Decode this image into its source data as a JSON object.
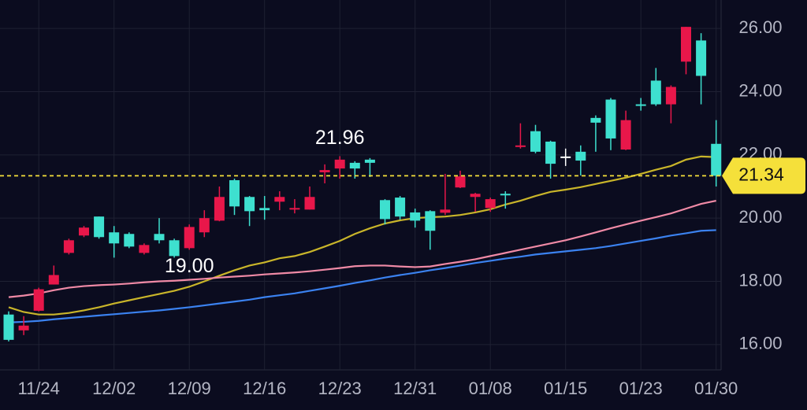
{
  "chart_data": {
    "type": "candlestick",
    "categories": [
      null,
      null,
      "11/24",
      null,
      null,
      null,
      null,
      "12/02",
      null,
      null,
      null,
      null,
      "12/09",
      null,
      null,
      null,
      null,
      "12/16",
      null,
      null,
      null,
      null,
      "12/23",
      null,
      null,
      null,
      null,
      "12/31",
      null,
      null,
      null,
      null,
      "01/08",
      null,
      null,
      null,
      null,
      "01/15",
      null,
      null,
      null,
      null,
      "01/23",
      null,
      null,
      null,
      null,
      "01/30"
    ],
    "open": [
      16.95,
      16.45,
      17.07,
      17.9,
      18.9,
      19.45,
      20.05,
      19.55,
      19.5,
      18.9,
      19.5,
      19.3,
      19.05,
      19.55,
      19.92,
      21.2,
      20.67,
      20.32,
      20.52,
      20.27,
      20.27,
      21.45,
      21.57,
      21.75,
      21.85,
      20.57,
      20.65,
      20.18,
      20.22,
      20.17,
      20.97,
      20.67,
      20.32,
      20.77,
      22.25,
      22.75,
      22.42,
      21.95,
      22.1,
      23.17,
      23.75,
      22.17,
      23.6,
      24.35,
      23.6,
      24.95,
      25.62,
      22.35
    ],
    "high": [
      17.05,
      16.9,
      17.8,
      18.5,
      19.35,
      19.75,
      20.05,
      19.75,
      19.55,
      19.2,
      20.0,
      19.35,
      19.8,
      20.25,
      21.0,
      21.25,
      20.7,
      20.7,
      20.85,
      20.6,
      21.0,
      21.7,
      21.96,
      21.8,
      21.9,
      20.6,
      20.7,
      20.3,
      20.25,
      21.4,
      21.5,
      20.8,
      20.65,
      20.85,
      23.0,
      22.95,
      22.45,
      22.2,
      22.3,
      23.25,
      23.8,
      23.4,
      23.8,
      24.75,
      24.2,
      26.05,
      25.85,
      23.1
    ],
    "low": [
      16.1,
      16.3,
      17.05,
      17.9,
      18.85,
      19.4,
      19.35,
      18.75,
      19.05,
      18.85,
      19.2,
      18.75,
      19.0,
      19.4,
      19.9,
      20.1,
      19.75,
      19.95,
      20.25,
      20.15,
      20.27,
      21.1,
      21.25,
      21.25,
      21.3,
      19.8,
      19.95,
      19.7,
      19.0,
      20.1,
      20.95,
      20.2,
      20.2,
      20.3,
      22.2,
      22.05,
      21.25,
      21.65,
      21.35,
      22.1,
      22.15,
      22.15,
      23.4,
      23.55,
      23.0,
      24.55,
      23.6,
      21.0
    ],
    "close": [
      16.15,
      16.6,
      17.75,
      18.2,
      19.3,
      19.7,
      19.4,
      19.2,
      19.1,
      19.15,
      19.3,
      18.8,
      19.72,
      20.0,
      20.67,
      20.37,
      20.22,
      20.25,
      20.67,
      20.32,
      20.67,
      21.52,
      21.85,
      21.57,
      21.75,
      19.97,
      20.05,
      19.92,
      19.6,
      20.27,
      21.32,
      20.77,
      20.6,
      20.72,
      22.3,
      22.1,
      21.72,
      21.95,
      21.82,
      23.02,
      22.52,
      23.1,
      23.55,
      23.6,
      24.15,
      26.05,
      24.5,
      21.34
    ],
    "up_color": "#e8174a",
    "down_color": "#3ee0cf",
    "flat_color": "#ffffff",
    "lines": [
      {
        "color": "#c9b52a",
        "values": [
          17.18,
          17.03,
          16.95,
          16.95,
          17.0,
          17.08,
          17.18,
          17.3,
          17.4,
          17.5,
          17.6,
          17.7,
          17.83,
          18.0,
          18.18,
          18.35,
          18.5,
          18.6,
          18.73,
          18.8,
          18.93,
          19.1,
          19.28,
          19.5,
          19.68,
          19.83,
          19.93,
          20.0,
          20.03,
          20.05,
          20.1,
          20.18,
          20.28,
          20.43,
          20.55,
          20.7,
          20.83,
          20.9,
          20.98,
          21.08,
          21.18,
          21.28,
          21.4,
          21.53,
          21.65,
          21.85,
          21.95,
          21.93
        ]
      },
      {
        "color": "#f08aa6",
        "values": [
          17.5,
          17.55,
          17.62,
          17.72,
          17.8,
          17.85,
          17.88,
          17.9,
          17.93,
          17.97,
          18.0,
          18.02,
          18.05,
          18.08,
          18.12,
          18.15,
          18.18,
          18.22,
          18.25,
          18.28,
          18.32,
          18.37,
          18.42,
          18.48,
          18.5,
          18.5,
          18.47,
          18.45,
          18.47,
          18.55,
          18.62,
          18.7,
          18.8,
          18.9,
          19.0,
          19.1,
          19.2,
          19.3,
          19.42,
          19.55,
          19.68,
          19.8,
          19.92,
          20.03,
          20.15,
          20.3,
          20.45,
          20.55
        ]
      },
      {
        "color": "#3b82f0",
        "values": [
          16.7,
          16.72,
          16.75,
          16.8,
          16.84,
          16.88,
          16.92,
          16.96,
          17.0,
          17.04,
          17.08,
          17.13,
          17.18,
          17.24,
          17.3,
          17.36,
          17.42,
          17.5,
          17.56,
          17.62,
          17.7,
          17.78,
          17.86,
          17.95,
          18.03,
          18.12,
          18.2,
          18.27,
          18.35,
          18.42,
          18.5,
          18.58,
          18.65,
          18.72,
          18.78,
          18.85,
          18.9,
          18.95,
          19.0,
          19.05,
          19.12,
          19.2,
          19.28,
          19.36,
          19.45,
          19.52,
          19.6,
          19.62
        ]
      }
    ],
    "max_marker": {
      "value": 21.96,
      "label": "21.96"
    },
    "min_marker": {
      "value": 19.0,
      "label": "19.00"
    },
    "last_price": {
      "value": 21.34,
      "label": "21.34",
      "color": "#f5e03a"
    },
    "ylim": [
      15.2,
      26.9
    ],
    "yticks": [
      {
        "value": 16,
        "label": "16.00"
      },
      {
        "value": 18,
        "label": "18.00"
      },
      {
        "value": 20,
        "label": "20.00"
      },
      {
        "value": 22,
        "label": "22.00"
      },
      {
        "value": 24,
        "label": "24.00"
      },
      {
        "value": 26,
        "label": "26.00"
      }
    ],
    "grid": true
  }
}
